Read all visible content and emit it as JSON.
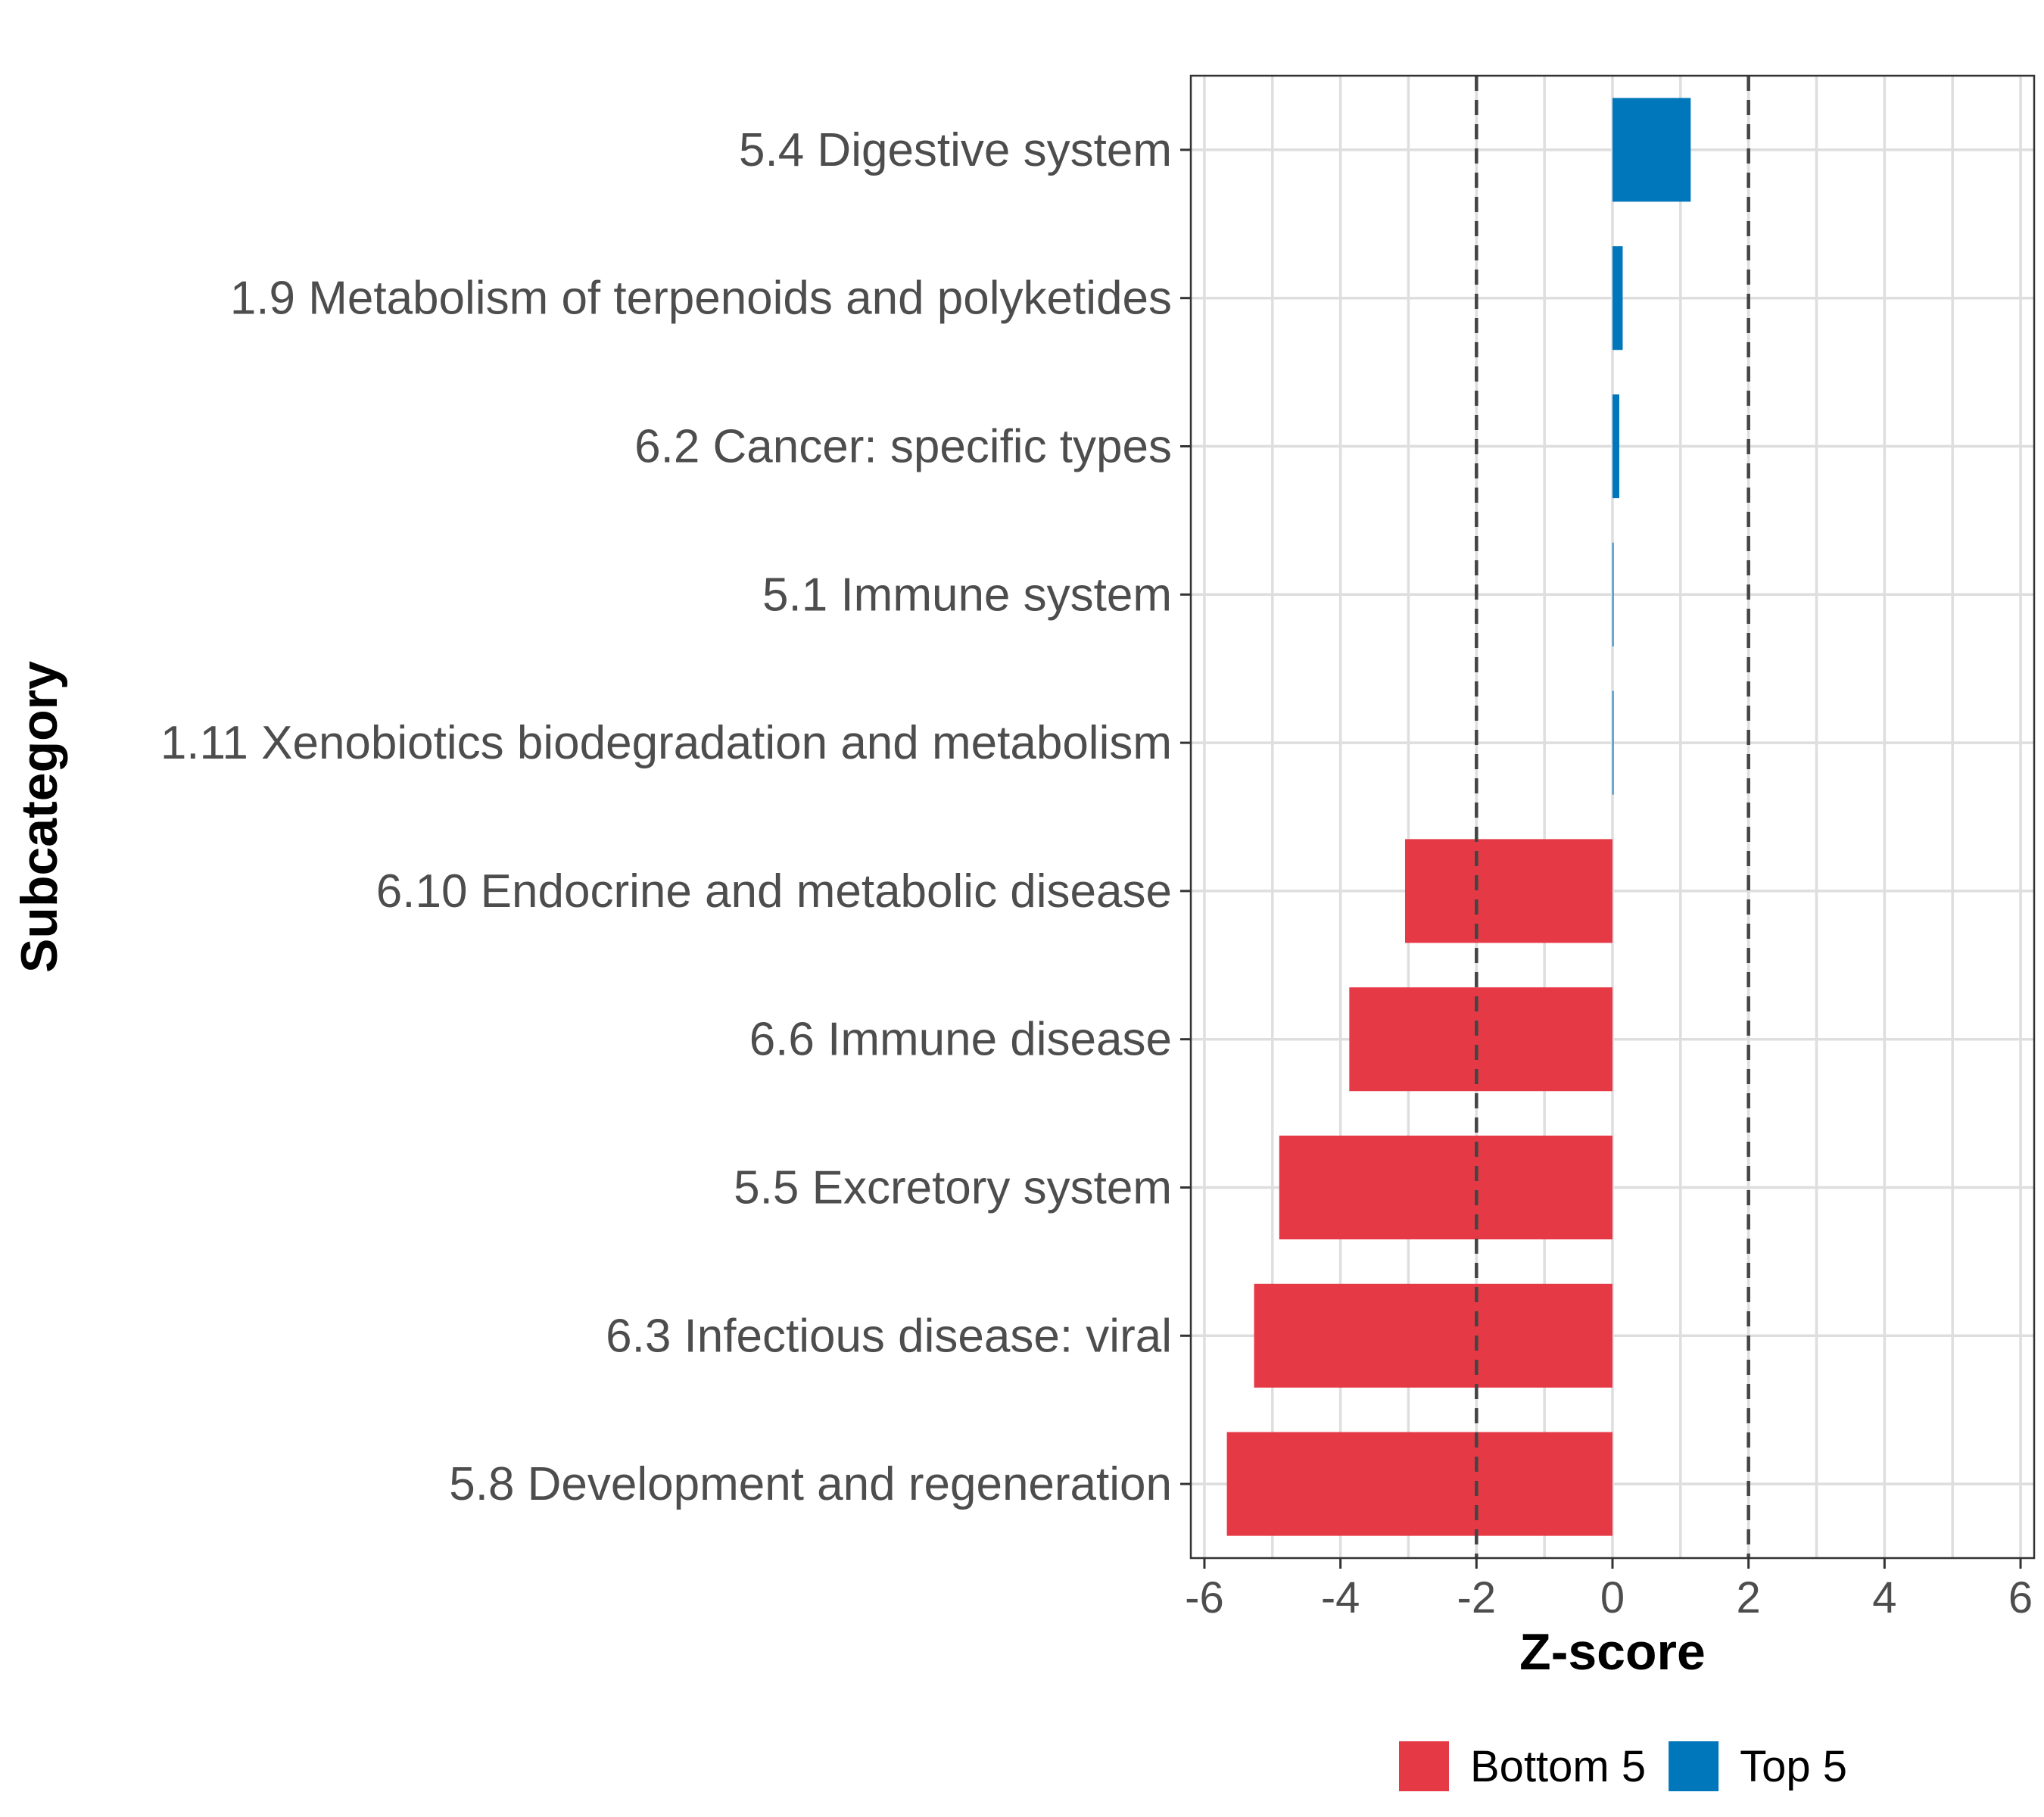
{
  "chart_data": {
    "type": "bar",
    "orientation": "horizontal",
    "xlabel": "Z-score",
    "ylabel": "Subcategory",
    "xlim": [
      -6.2,
      6.2
    ],
    "xticks": [
      -6,
      -4,
      -2,
      0,
      2,
      4,
      6
    ],
    "xtick_labels": [
      "-6",
      "-4",
      "-2",
      "0",
      "2",
      "4",
      "6"
    ],
    "reference_lines": [
      -2,
      2
    ],
    "grid": true,
    "categories": [
      "5.4 Digestive system",
      "1.9 Metabolism of terpenoids and polyketides",
      "6.2 Cancer: specific types",
      "5.1 Immune system",
      "1.11 Xenobiotics biodegradation and metabolism",
      "6.10 Endocrine and metabolic disease",
      "6.6 Immune disease",
      "5.5 Excretory system",
      "6.3 Infectious disease: viral",
      "5.8 Development and regeneration"
    ],
    "values": [
      1.15,
      0.15,
      0.1,
      0.01,
      0.01,
      -3.05,
      -3.87,
      -4.9,
      -5.27,
      -5.67
    ],
    "groups": [
      "Top 5",
      "Top 5",
      "Top 5",
      "Top 5",
      "Top 5",
      "Bottom 5",
      "Bottom 5",
      "Bottom 5",
      "Bottom 5",
      "Bottom 5"
    ],
    "legend": {
      "position": "bottom",
      "entries": [
        {
          "label": "Bottom 5",
          "color": "#e63946"
        },
        {
          "label": "Top 5",
          "color": "#0077bb"
        }
      ]
    }
  }
}
